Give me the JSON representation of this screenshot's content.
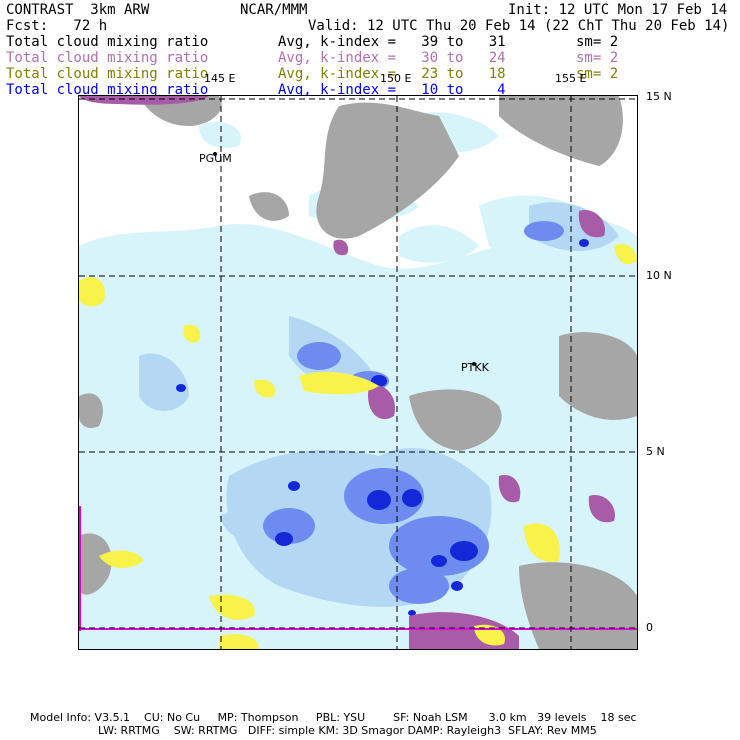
{
  "header": {
    "model": "CONTRAST  3km ARW",
    "center": "NCAR/MMM",
    "init": "Init: 12 UTC Mon 17 Feb 14",
    "fcst": "Fcst:   72 h",
    "valid": "Valid: 12 UTC Thu 20 Feb 14 (22 ChT Thu 20 Feb 14)"
  },
  "fields": [
    {
      "name": "Total cloud mixing ratio",
      "range": "Avg, k-index =   39 to   31",
      "smooth": "sm= 2",
      "color": "#000000"
    },
    {
      "name": "Total cloud mixing ratio",
      "range": "Avg, k-index =   30 to   24",
      "smooth": "sm= 2",
      "color": "#b070b0"
    },
    {
      "name": "Total cloud mixing ratio",
      "range": "Avg, k-index =   23 to   18",
      "smooth": "sm= 2",
      "color": "#808000"
    },
    {
      "name": "Total cloud mixing ratio",
      "range": "Avg, k-index =   10 to    4",
      "smooth": "",
      "color": "#0000ff"
    }
  ],
  "map": {
    "lon_labels": [
      "145 E",
      "150 E",
      "155 E"
    ],
    "lat_labels": [
      "15 N",
      "10 N",
      "5 N",
      "0"
    ],
    "stations": [
      "PGUM",
      "PTKK"
    ],
    "colors": {
      "terrain_gray": "#a6a6a6",
      "cloud_light": "#d8f4fb",
      "cloud_med": "#b4d8f4",
      "cloud_blue": "#6e8cf0",
      "cloud_deep": "#1428d8",
      "purple": "#a85ca8",
      "yellow": "#f8f24a",
      "magenta": "#e000e0"
    }
  },
  "footer": {
    "line1": "Model Info: V3.5.1    CU: No Cu     MP: Thompson     PBL: YSU        SF: Noah LSM      3.0 km   39 levels    18 sec",
    "line2": "LW: RRTMG    SW: RRTMG   DIFF: simple KM: 3D Smagor DAMP: Rayleigh3  SFLAY: Rev MM5"
  }
}
